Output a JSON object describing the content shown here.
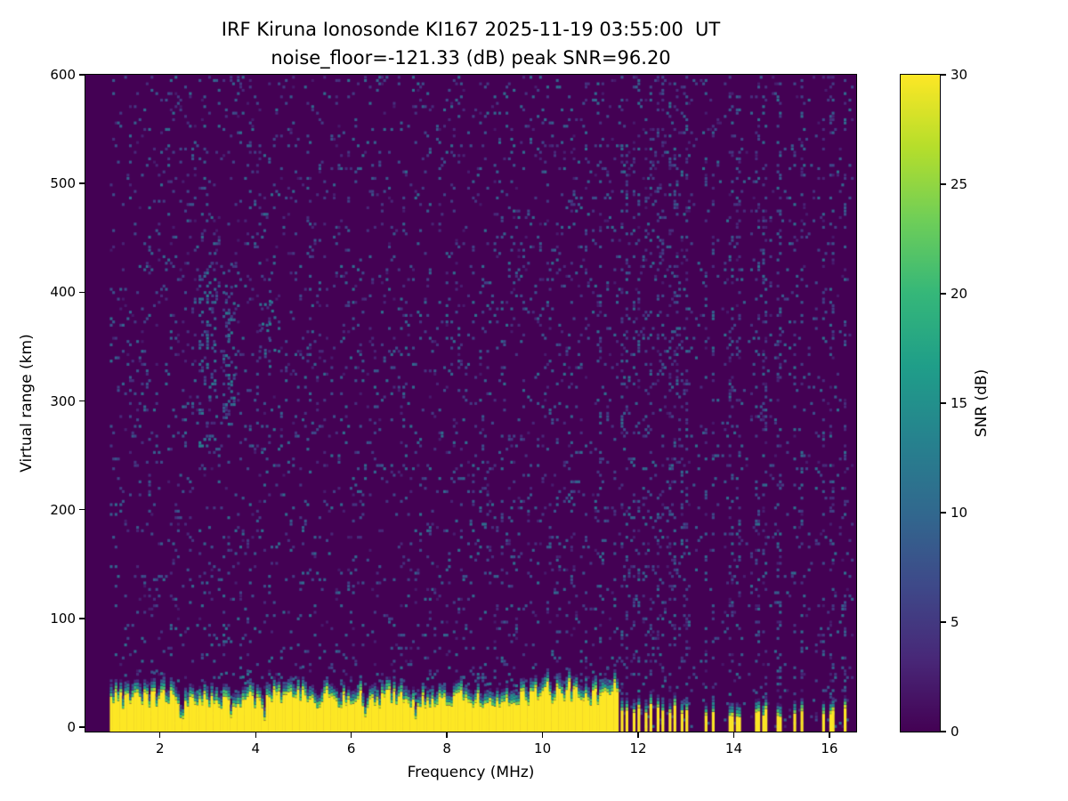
{
  "chart_data": {
    "type": "heatmap",
    "title": "IRF Kiruna Ionosonde KI167 2025-11-19 03:55:00  UT",
    "subtitle": "noise_floor=-121.33 (dB) peak SNR=96.20",
    "xlabel": "Frequency (MHz)",
    "ylabel": "Virtual range (km)",
    "colorbar_label": "SNR (dB)",
    "noise_floor_db": -121.33,
    "peak_snr_db": 96.2,
    "x_ticks": [
      2,
      4,
      6,
      8,
      10,
      12,
      14,
      16
    ],
    "y_ticks": [
      0,
      100,
      200,
      300,
      400,
      500,
      600
    ],
    "colorbar_ticks": [
      0,
      5,
      10,
      15,
      20,
      25,
      30
    ],
    "x_range_mhz": [
      0.44,
      16.56
    ],
    "data_x_range_mhz": [
      0.95,
      16.5
    ],
    "y_range_km": [
      -4,
      600
    ],
    "colorbar_range_db": [
      0,
      30
    ],
    "colormap": "viridis",
    "colors": {
      "background": "#ffffff",
      "text": "#000000",
      "viridis_stops": [
        "#440154",
        "#482878",
        "#3e4989",
        "#31688e",
        "#26828e",
        "#1f9e89",
        "#35b779",
        "#6ece58",
        "#b5de2b",
        "#fde725"
      ]
    },
    "seed": 20251119,
    "features": {
      "noise_speckle": {
        "density": 0.07,
        "snr_db_range": [
          2,
          11
        ]
      },
      "ground_band": {
        "base_top_km": 31,
        "jitter_km": 9,
        "snr_db": 30,
        "continuous_until_mhz": 11.58,
        "notches_mhz": [
          2.45,
          3.5,
          4.2,
          6.3,
          7.35
        ]
      },
      "echo_patches": [
        {
          "f_mhz": [
            2.78,
            3.15
          ],
          "range_km": [
            260,
            440
          ],
          "density": 0.2
        },
        {
          "f_mhz": [
            3.28,
            3.55
          ],
          "range_km": [
            280,
            430
          ],
          "density": 0.22
        },
        {
          "f_mhz": [
            4.05,
            4.4
          ],
          "range_km": [
            330,
            405
          ],
          "density": 0.14
        }
      ],
      "rfi_comb": {
        "start_mhz": 11.62,
        "end_mhz": 13.15,
        "spacing_mhz": 0.125,
        "bar_width_mhz": 0.055
      },
      "rfi_bars_mhz": [
        13.42,
        13.56,
        13.93,
        14.1,
        14.48,
        14.63,
        14.95,
        15.28,
        15.42,
        15.88,
        16.05,
        16.32
      ]
    }
  }
}
